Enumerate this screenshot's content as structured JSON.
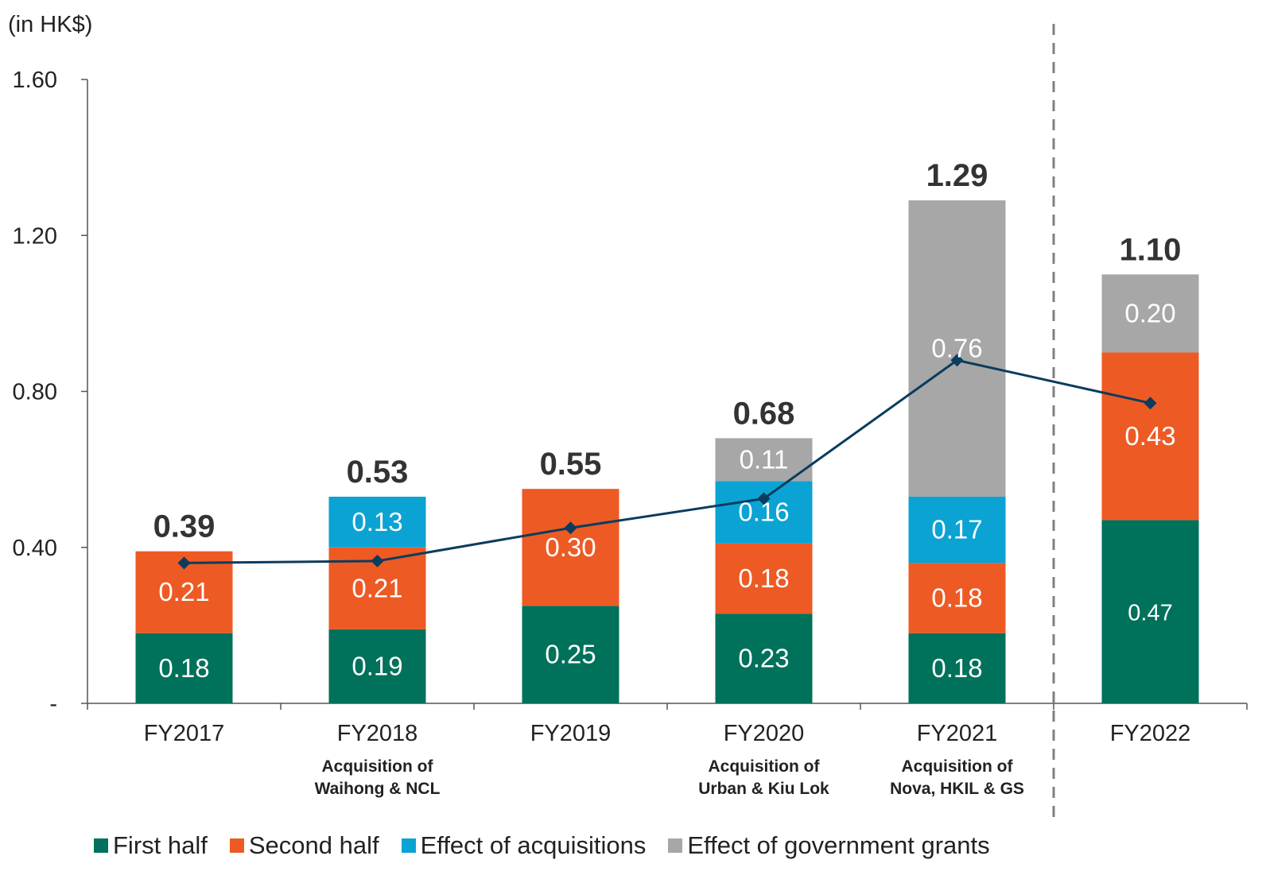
{
  "unit_label": "(in HK$)",
  "chart_data": {
    "type": "bar",
    "stacked": true,
    "categories": [
      "FY2017",
      "FY2018",
      "FY2019",
      "FY2020",
      "FY2021",
      "FY2022"
    ],
    "category_notes": [
      "",
      "Acquisition of Waihong & NCL",
      "",
      "Acquisition of Urban & Kiu Lok",
      "Acquisition of Nova, HKIL & GS",
      ""
    ],
    "y_ticks": [
      "-",
      "0.40",
      "0.80",
      "1.20",
      "1.60"
    ],
    "ylim": [
      0,
      1.6
    ],
    "series": [
      {
        "name": "First half",
        "color": "#00715A",
        "values": [
          0.18,
          0.19,
          0.25,
          0.23,
          0.18,
          0.47
        ],
        "labels": [
          "0.18",
          "0.19",
          "0.25",
          "0.23",
          "0.18",
          "0.47"
        ]
      },
      {
        "name": "Second half",
        "color": "#EE5A24",
        "values": [
          0.21,
          0.21,
          0.3,
          0.18,
          0.18,
          0.43
        ],
        "labels": [
          "0.21",
          "0.21",
          "0.30",
          "0.18",
          "0.18",
          "0.43"
        ]
      },
      {
        "name": "Effect of acquisitions",
        "color": "#0BA3D4",
        "values": [
          0,
          0.13,
          0,
          0.16,
          0.17,
          0
        ],
        "labels": [
          "",
          "0.13",
          "",
          "0.16",
          "0.17",
          ""
        ]
      },
      {
        "name": "Effect of government grants",
        "color": "#A7A7A7",
        "values": [
          0,
          0,
          0,
          0.11,
          0.76,
          0.2
        ],
        "labels": [
          "",
          "",
          "",
          "0.11",
          "0.76",
          "0.20"
        ]
      }
    ],
    "totals": [
      "0.39",
      "0.53",
      "0.55",
      "0.68",
      "1.29",
      "1.10"
    ],
    "total_values": [
      0.39,
      0.53,
      0.55,
      0.68,
      1.29,
      1.1
    ],
    "line": {
      "color": "#0B3C5D",
      "values": [
        0.36,
        0.365,
        0.45,
        0.525,
        0.88,
        0.77
      ]
    },
    "separator": {
      "after_category": 4,
      "style": "dashed",
      "color": "#808080"
    },
    "legend_position": "bottom"
  }
}
